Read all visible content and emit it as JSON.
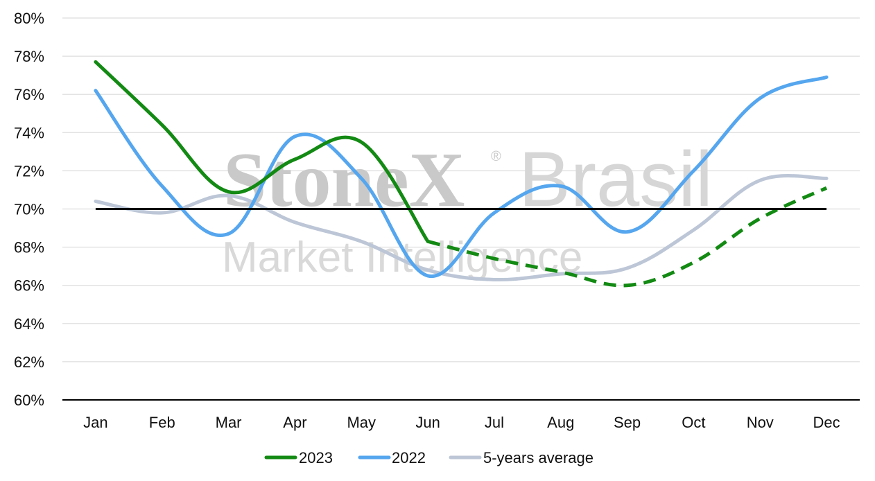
{
  "watermark": {
    "line1_bold": "StoneX",
    "registered": "®",
    "line1_light": "Brasil",
    "line2": "Market Intelligence"
  },
  "chart_data": {
    "type": "line",
    "categories": [
      "Jan",
      "Feb",
      "Mar",
      "Apr",
      "May",
      "Jun",
      "Jul",
      "Aug",
      "Sep",
      "Oct",
      "Nov",
      "Dec"
    ],
    "ylim": [
      60,
      80
    ],
    "yticks": [
      60,
      62,
      64,
      66,
      68,
      70,
      72,
      74,
      76,
      78,
      80
    ],
    "ytick_format": "{v}%",
    "grid": true,
    "legend_position": "bottom",
    "reference_line": {
      "value": 70,
      "color": "#000000"
    },
    "series": [
      {
        "name": "2023",
        "color": "#138a13",
        "values": [
          77.7,
          74.4,
          70.9,
          72.6,
          73.5,
          68.3,
          67.4,
          66.7,
          66.0,
          67.2,
          69.5,
          71.1
        ],
        "dashed_from_index": 5
      },
      {
        "name": "2022",
        "color": "#55a6ee",
        "values": [
          76.2,
          71.2,
          68.7,
          73.8,
          71.6,
          66.5,
          69.8,
          71.2,
          68.8,
          72.0,
          75.8,
          76.9
        ]
      },
      {
        "name": "5-years average",
        "color": "#bcc6d6",
        "values": [
          70.4,
          69.8,
          70.7,
          69.3,
          68.3,
          66.8,
          66.3,
          66.6,
          66.9,
          68.9,
          71.5,
          71.6
        ]
      }
    ]
  }
}
